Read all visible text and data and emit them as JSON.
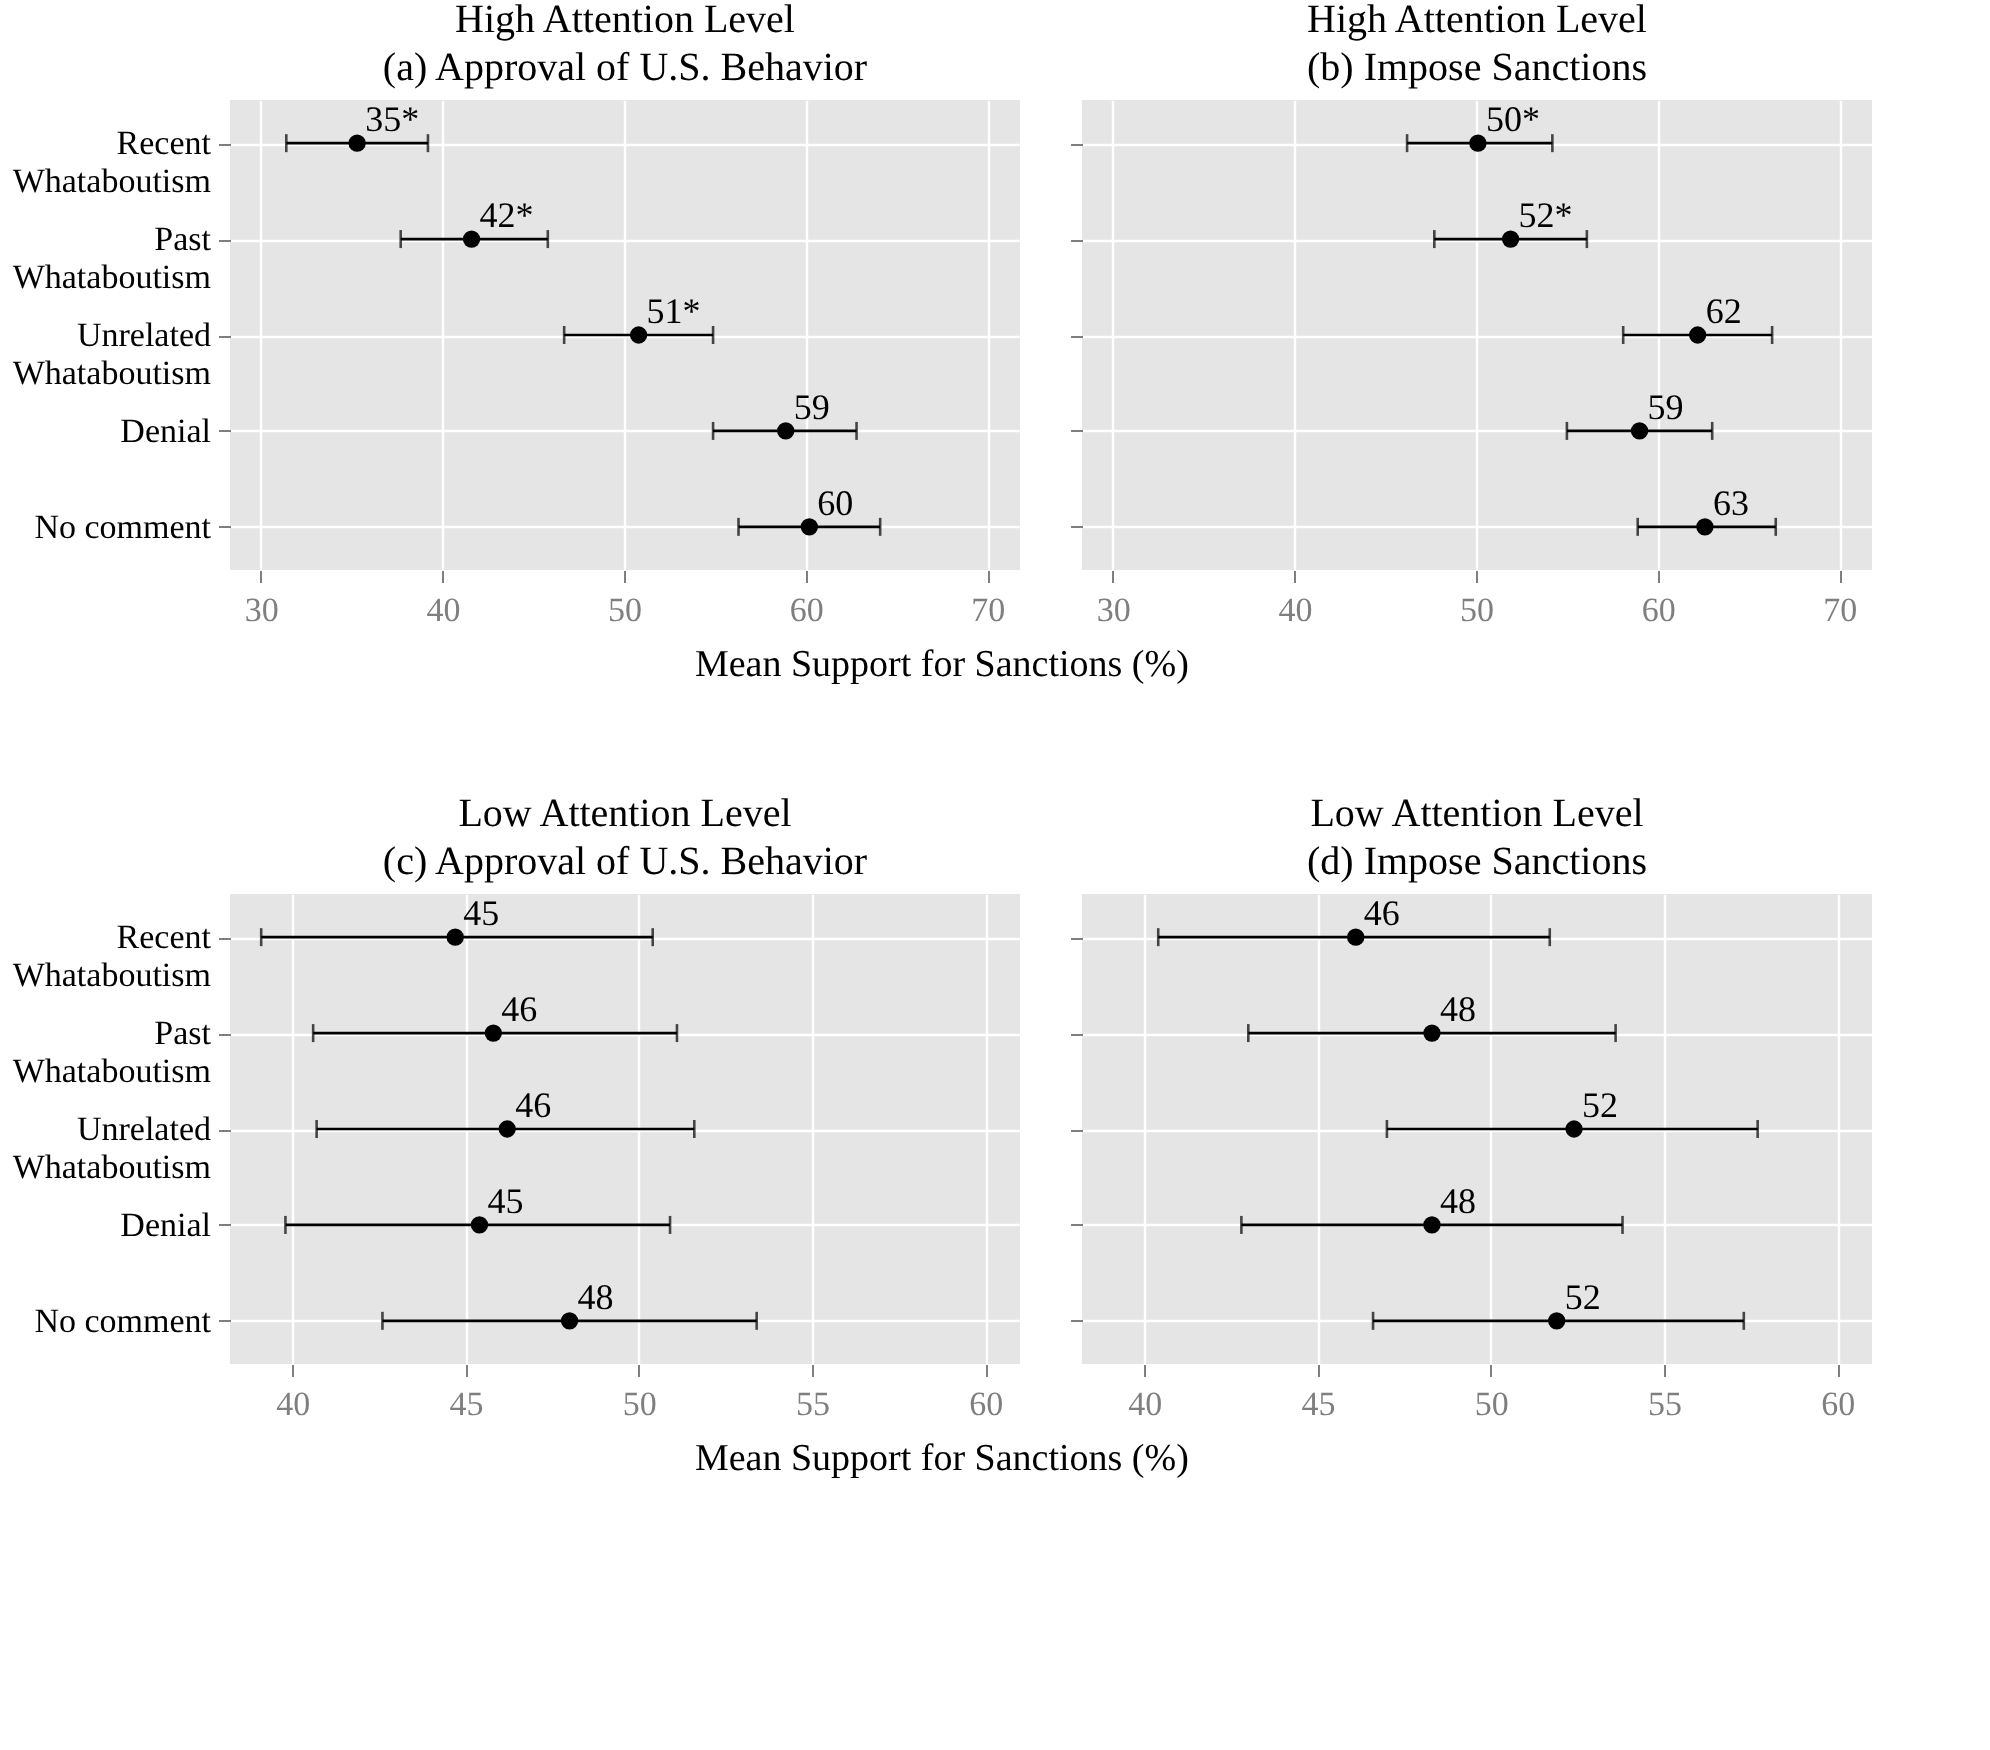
{
  "chart_data": [
    {
      "type": "scatter",
      "orientation": "horizontal",
      "title": "High Attention Level",
      "subtitle": "(a) Approval of U.S. Behavior",
      "xlabel": "Mean Support for Sanctions (%)",
      "categories": [
        "Recent\nWhataboutism",
        "Past\nWhataboutism",
        "Unrelated\nWhataboutism",
        "Denial",
        "No comment"
      ],
      "values": [
        35.3,
        41.6,
        50.8,
        58.9,
        60.2
      ],
      "errors": [
        [
          31.4,
          39.2
        ],
        [
          37.7,
          45.8
        ],
        [
          46.7,
          54.9
        ],
        [
          54.9,
          62.8
        ],
        [
          56.3,
          64.1
        ]
      ],
      "value_labels": [
        "35*",
        "42*",
        "51*",
        "59",
        "60"
      ],
      "color": "#000000",
      "marker": "circle",
      "xlim": [
        28.3,
        71.8
      ],
      "xticks": [
        30,
        40,
        50,
        60,
        70
      ],
      "grid": true
    },
    {
      "type": "scatter",
      "orientation": "horizontal",
      "title": "High Attention Level",
      "subtitle": "(b) Impose Sanctions",
      "categories": [
        null,
        null,
        null,
        null,
        null
      ],
      "values": [
        50.1,
        51.9,
        62.2,
        59.0,
        62.6
      ],
      "errors": [
        [
          46.2,
          54.2
        ],
        [
          47.7,
          56.1
        ],
        [
          58.1,
          66.3
        ],
        [
          55.0,
          63.0
        ],
        [
          58.9,
          66.5
        ]
      ],
      "value_labels": [
        "50*",
        "52*",
        "62",
        "59",
        "63"
      ],
      "color": "#000000",
      "marker": "circle",
      "xlim": [
        28.3,
        71.8
      ],
      "xticks": [
        30,
        40,
        50,
        60,
        70
      ],
      "grid": true,
      "tick_labels": "x"
    },
    {
      "type": "scatter",
      "orientation": "horizontal",
      "title": "Low Attention Level",
      "subtitle": "(c) Approval of U.S. Behavior",
      "xlabel": "Mean Support for Sanctions (%)",
      "categories": [
        "Recent\nWhataboutism",
        "Past\nWhataboutism",
        "Unrelated\nWhataboutism",
        "Denial",
        "No comment"
      ],
      "values": [
        44.7,
        45.8,
        46.2,
        45.4,
        48.0
      ],
      "errors": [
        [
          39.1,
          50.4
        ],
        [
          40.6,
          51.1
        ],
        [
          40.7,
          51.6
        ],
        [
          39.8,
          50.9
        ],
        [
          42.6,
          53.4
        ]
      ],
      "value_labels": [
        "45",
        "46",
        "46",
        "45",
        "48"
      ],
      "color": "#000000",
      "marker": "circle",
      "xlim": [
        38.2,
        61.0
      ],
      "xticks": [
        40,
        45,
        50,
        55,
        60
      ],
      "grid": true
    },
    {
      "type": "scatter",
      "orientation": "horizontal",
      "title": "Low Attention Level",
      "subtitle": "(d) Impose Sanctions",
      "categories": [
        null,
        null,
        null,
        null,
        null
      ],
      "values": [
        46.1,
        48.3,
        52.4,
        48.3,
        51.9
      ],
      "errors": [
        [
          40.4,
          51.7
        ],
        [
          43.0,
          53.6
        ],
        [
          47.0,
          57.7
        ],
        [
          42.8,
          53.8
        ],
        [
          46.6,
          57.3
        ]
      ],
      "value_labels": [
        "46",
        "48",
        "52",
        "48",
        "52"
      ],
      "color": "#000000",
      "marker": "circle",
      "xlim": [
        38.2,
        61.0
      ],
      "xticks": [
        40,
        45,
        50,
        55,
        60
      ],
      "grid": true,
      "tick_labels": "x"
    }
  ]
}
